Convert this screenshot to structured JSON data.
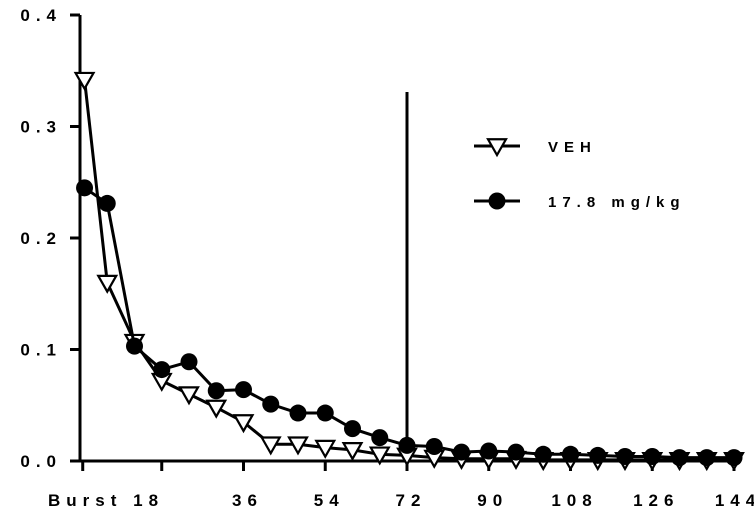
{
  "chart_data": {
    "type": "line",
    "title": "",
    "xlabel": "",
    "ylabel": "",
    "x": [
      1,
      6,
      12,
      18,
      24,
      30,
      36,
      42,
      48,
      54,
      60,
      66,
      72,
      78,
      84,
      90,
      96,
      102,
      108,
      114,
      120,
      126,
      132,
      138,
      144
    ],
    "xticks": [
      18,
      36,
      54,
      72,
      90,
      108,
      126,
      144
    ],
    "xtick_labels": [
      "Burst 18",
      "36",
      "54",
      "72",
      "90",
      "108",
      "126",
      "144"
    ],
    "xlim": [
      0,
      144
    ],
    "ylim": [
      0,
      0.4
    ],
    "yticks": [
      0,
      0.1,
      0.2,
      0.3,
      0.4
    ],
    "ytick_labels": [
      "0.0",
      "0.1",
      "0.2",
      "0.3",
      "0.4"
    ],
    "vertical_line_x": 72,
    "legend_position": "right",
    "grid": false,
    "series": [
      {
        "name": "VEH",
        "marker": "open-triangle-down",
        "color": "#000000",
        "values": [
          0.342,
          0.16,
          0.107,
          0.072,
          0.06,
          0.048,
          0.035,
          0.015,
          0.015,
          0.012,
          0.01,
          0.006,
          0.005,
          0.003,
          0.002,
          0.002,
          0.002,
          0.001,
          0.001,
          0.001,
          0.001,
          0.001,
          0.001,
          0.001,
          0.001
        ]
      },
      {
        "name": "17.8 mg/kg",
        "marker": "filled-circle",
        "color": "#000000",
        "values": [
          0.245,
          0.231,
          0.103,
          0.082,
          0.089,
          0.063,
          0.064,
          0.051,
          0.043,
          0.043,
          0.029,
          0.021,
          0.014,
          0.013,
          0.008,
          0.009,
          0.008,
          0.006,
          0.006,
          0.005,
          0.004,
          0.004,
          0.003,
          0.003,
          0.003
        ]
      }
    ]
  }
}
